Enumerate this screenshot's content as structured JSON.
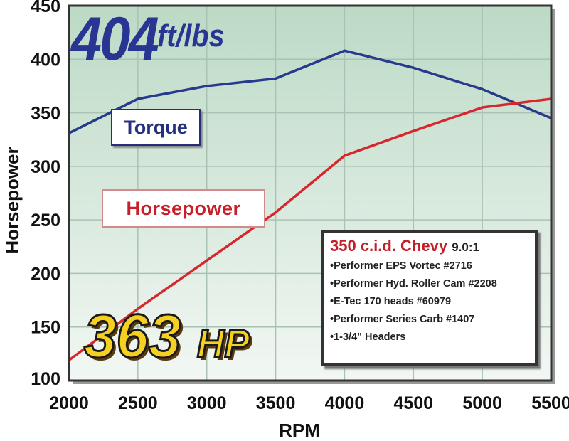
{
  "chart_data": {
    "type": "line",
    "xlabel": "RPM",
    "ylabel": "Horsepower",
    "xlim": [
      2000,
      5500
    ],
    "ylim": [
      100,
      450
    ],
    "x": [
      2000,
      2500,
      3000,
      3500,
      4000,
      4500,
      5000,
      5500
    ],
    "x_ticks": [
      "2000",
      "2500",
      "3000",
      "3500",
      "4000",
      "4500",
      "5000",
      "5500"
    ],
    "y_ticks": [
      "100",
      "150",
      "200",
      "250",
      "300",
      "350",
      "400",
      "450"
    ],
    "grid": true,
    "background": "#c9e2d2",
    "series": [
      {
        "name": "Torque",
        "color": "#273a8c",
        "values": [
          331,
          363,
          375,
          382,
          408,
          392,
          372,
          345
        ]
      },
      {
        "name": "Horsepower",
        "color": "#d8262e",
        "values": [
          119,
          167,
          212,
          257,
          310,
          333,
          355,
          363
        ]
      }
    ],
    "annotations": {
      "torque_peak": {
        "value": "404",
        "unit": "ft/lbs"
      },
      "hp_peak": {
        "value": "363",
        "unit": "HP"
      }
    },
    "spec_box": {
      "title": "350 c.i.d. Chevy",
      "compression": "9.0:1",
      "items": [
        "Performer EPS Vortec #2716",
        "Performer Hyd. Roller Cam #2208",
        "E-Tec 170 heads #60979",
        "Performer Series Carb #1407",
        "1-3/4\" Headers"
      ]
    }
  }
}
